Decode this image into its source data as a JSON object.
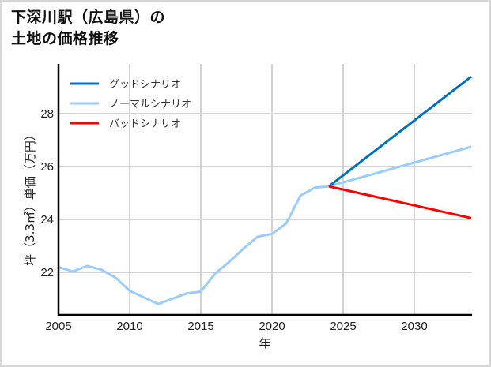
{
  "header": {
    "title_line1": "下深川駅（広島県）の",
    "title_line2": "土地の価格推移"
  },
  "chart_data": {
    "type": "line",
    "title": "下深川駅（広島県）の土地の価格推移",
    "xlabel": "年",
    "ylabel": "坪（3.3㎡）単価（万円）",
    "xlim": [
      2005,
      2034
    ],
    "ylim": [
      20.4,
      29.9
    ],
    "xticks": [
      2005,
      2010,
      2015,
      2020,
      2025,
      2030
    ],
    "yticks": [
      22,
      24,
      26,
      28
    ],
    "grid": true,
    "legend_position": "upper left",
    "series": [
      {
        "name": "グッドシナリオ",
        "color": "#0070c0",
        "x": [
          2024,
          2034
        ],
        "values": [
          25.25,
          29.4
        ]
      },
      {
        "name": "ノーマルシナリオ",
        "color": "#99ccff",
        "x": [
          2005,
          2006,
          2007,
          2008,
          2009,
          2010,
          2011,
          2012,
          2013,
          2014,
          2015,
          2016,
          2017,
          2018,
          2019,
          2020,
          2021,
          2022,
          2023,
          2024,
          2034
        ],
        "values": [
          22.2,
          22.03,
          22.24,
          22.1,
          21.8,
          21.3,
          21.05,
          20.8,
          21.0,
          21.2,
          21.27,
          21.95,
          22.4,
          22.9,
          23.35,
          23.45,
          23.85,
          24.9,
          25.2,
          25.25,
          26.75
        ]
      },
      {
        "name": "バッドシナリオ",
        "color": "#ff0000",
        "x": [
          2024,
          2034
        ],
        "values": [
          25.25,
          24.05
        ]
      }
    ]
  }
}
